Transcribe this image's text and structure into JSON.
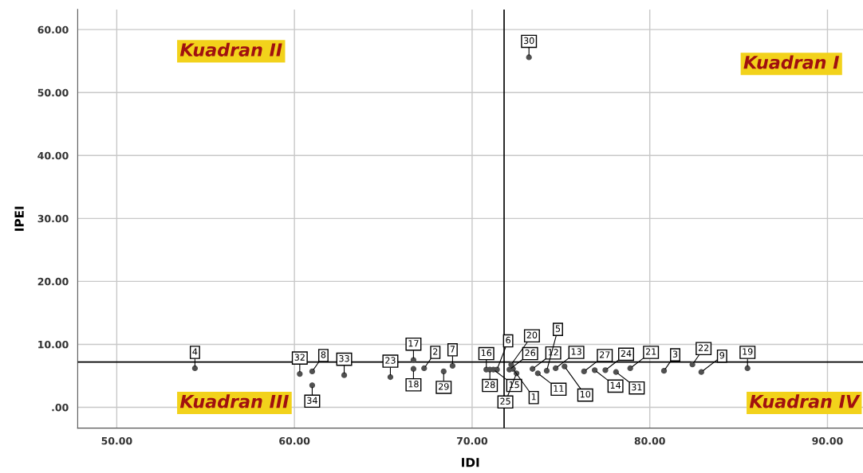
{
  "chart_data": {
    "type": "scatter",
    "xlabel": "IDI",
    "ylabel": "IPEI",
    "x": [
      54.4,
      60.3,
      61.0,
      61.0,
      62.8,
      65.4,
      66.7,
      66.7,
      67.3,
      68.4,
      68.9,
      70.8,
      71.0,
      71.2,
      71.4,
      72.1,
      72.2,
      72.3,
      72.5,
      73.2,
      73.4,
      73.7,
      74.2,
      74.7,
      75.2,
      76.3,
      76.9,
      77.5,
      78.1,
      78.9,
      80.8,
      82.4,
      82.9,
      85.5
    ],
    "series": [
      {
        "color": "#505050",
        "values": [
          6.2,
          5.3,
          5.7,
          3.5,
          5.1,
          4.8,
          7.5,
          6.1,
          6.2,
          5.7,
          6.6,
          6.0,
          6.0,
          6.0,
          6.0,
          6.0,
          6.8,
          6.1,
          5.4,
          55.6,
          6.1,
          5.4,
          5.8,
          6.2,
          6.5,
          5.7,
          5.9,
          5.9,
          5.6,
          6.2,
          5.8,
          6.8,
          5.6,
          6.2
        ]
      }
    ],
    "marker": "circle",
    "xlim": [
      47.8,
      92
    ],
    "ylim": [
      -3.3,
      63.2
    ],
    "xticks": [
      {
        "value": 50,
        "label": "50.00"
      },
      {
        "value": 60,
        "label": "60.00"
      },
      {
        "value": 70,
        "label": "70.00"
      },
      {
        "value": 80,
        "label": "80.00"
      },
      {
        "value": 90,
        "label": "90.00"
      }
    ],
    "yticks": [
      {
        "value": 0,
        "label": ".00"
      },
      {
        "value": 10,
        "label": "10.00"
      },
      {
        "value": 20,
        "label": "20.00"
      },
      {
        "value": 30,
        "label": "30.00"
      },
      {
        "value": 40,
        "label": "40.00"
      },
      {
        "value": 50,
        "label": "50.00"
      },
      {
        "value": 60,
        "label": "60.00"
      }
    ],
    "grid": true,
    "ref_lines": [
      {
        "axis": "x",
        "value": 71.8,
        "color": "#000000"
      },
      {
        "axis": "y",
        "value": 7.2,
        "color": "#000000"
      }
    ],
    "annotations": [
      "Kuadran I",
      "Kuadran II",
      "Kuadran III",
      "Kuadran IV",
      {
        "text": "4",
        "x": 54.4,
        "y": 6.2
      },
      {
        "text": "32",
        "x": 60.3,
        "y": 5.3
      },
      {
        "text": "8",
        "x": 61.0,
        "y": 5.7
      },
      {
        "text": "34",
        "x": 61.0,
        "y": 3.5
      },
      {
        "text": "33",
        "x": 62.8,
        "y": 5.1
      },
      {
        "text": "23",
        "x": 65.4,
        "y": 4.8
      },
      {
        "text": "17",
        "x": 66.7,
        "y": 7.5
      },
      {
        "text": "18",
        "x": 66.7,
        "y": 6.1
      },
      {
        "text": "2",
        "x": 67.3,
        "y": 6.2
      },
      {
        "text": "29",
        "x": 68.4,
        "y": 5.7
      },
      {
        "text": "7",
        "x": 68.9,
        "y": 6.6
      },
      {
        "text": "16",
        "x": 70.8,
        "y": 6.0
      },
      {
        "text": "28",
        "x": 71.0,
        "y": 6.0
      },
      {
        "text": "15",
        "x": 71.2,
        "y": 6.0
      },
      {
        "text": "6",
        "x": 71.4,
        "y": 6.0
      },
      {
        "text": "26",
        "x": 72.1,
        "y": 6.0
      },
      {
        "text": "20",
        "x": 72.2,
        "y": 6.8
      },
      {
        "text": "1",
        "x": 72.3,
        "y": 6.1
      },
      {
        "text": "25",
        "x": 72.5,
        "y": 5.4
      },
      {
        "text": "30",
        "x": 73.2,
        "y": 55.6
      },
      {
        "text": "12",
        "x": 73.4,
        "y": 6.1
      },
      {
        "text": "11",
        "x": 73.7,
        "y": 5.4
      },
      {
        "text": "5",
        "x": 74.2,
        "y": 5.8
      },
      {
        "text": "13",
        "x": 74.7,
        "y": 6.2
      },
      {
        "text": "10",
        "x": 75.2,
        "y": 6.5
      },
      {
        "text": "27",
        "x": 76.3,
        "y": 5.7
      },
      {
        "text": "14",
        "x": 76.9,
        "y": 5.9
      },
      {
        "text": "24",
        "x": 77.5,
        "y": 5.9
      },
      {
        "text": "31",
        "x": 78.1,
        "y": 5.6
      },
      {
        "text": "21",
        "x": 78.9,
        "y": 6.2
      },
      {
        "text": "3",
        "x": 80.8,
        "y": 5.8
      },
      {
        "text": "22",
        "x": 82.4,
        "y": 6.8
      },
      {
        "text": "9",
        "x": 82.9,
        "y": 5.6
      },
      {
        "text": "19",
        "x": 85.5,
        "y": 6.2
      }
    ]
  }
}
